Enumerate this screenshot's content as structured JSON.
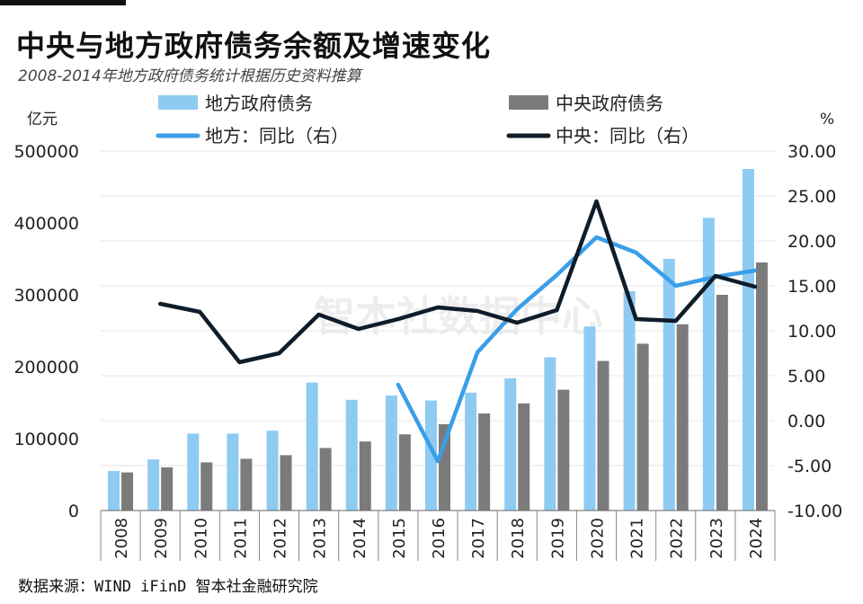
{
  "title": "中央与地方政府债务余额及增速变化",
  "subtitle": "2008-2014年地方政府债务统计根据历史资料推算",
  "source": "数据来源：WIND iFinD 智本社金融研究院",
  "watermark": "智本社数据中心",
  "colors": {
    "local_bar": "#8ecbf2",
    "central_bar": "#7b7b7b",
    "local_line": "#3a9ee8",
    "central_line": "#0f1c2a"
  },
  "chart_data": {
    "type": "bar",
    "categories": [
      "2008",
      "2009",
      "2010",
      "2011",
      "2012",
      "2013",
      "2014",
      "2015",
      "2016",
      "2017",
      "2018",
      "2019",
      "2020",
      "2021",
      "2022",
      "2023",
      "2024"
    ],
    "y_left_unit": "亿元",
    "y_right_unit": "%",
    "y_left_ticks": [
      "500000",
      "400000",
      "300000",
      "200000",
      "100000",
      "0"
    ],
    "y_right_ticks": [
      "30.00",
      "25.00",
      "20.00",
      "15.00",
      "10.00",
      "5.00",
      "0.00",
      "-5.00",
      "-10.00"
    ],
    "ylim_left": [
      0,
      500000
    ],
    "ylim_right": [
      -10,
      30
    ],
    "grid": true,
    "legend_position": "top",
    "series": [
      {
        "name": "地方政府债务",
        "kind": "bar",
        "axis": "left",
        "values": [
          55000,
          71000,
          107000,
          107000,
          111000,
          178000,
          154000,
          160000,
          153000,
          164000,
          184000,
          213000,
          256000,
          305000,
          350000,
          407000,
          475000
        ]
      },
      {
        "name": "中央政府债务",
        "kind": "bar",
        "axis": "left",
        "values": [
          53000,
          60000,
          67000,
          72000,
          77000,
          87000,
          96000,
          106000,
          120000,
          135000,
          149000,
          168000,
          208000,
          232000,
          259000,
          300000,
          345000
        ]
      },
      {
        "name": "地方：同比（右）",
        "kind": "line",
        "axis": "right",
        "values": [
          null,
          null,
          null,
          null,
          null,
          null,
          null,
          4.0,
          -4.5,
          7.6,
          12.4,
          16.2,
          20.4,
          18.7,
          15.0,
          16.0,
          16.7
        ]
      },
      {
        "name": "中央：同比（右）",
        "kind": "line",
        "axis": "right",
        "values": [
          null,
          13.0,
          12.1,
          6.5,
          7.5,
          11.8,
          10.2,
          11.3,
          12.6,
          12.2,
          10.9,
          12.3,
          24.4,
          11.3,
          11.1,
          16.1,
          14.9
        ]
      }
    ]
  }
}
